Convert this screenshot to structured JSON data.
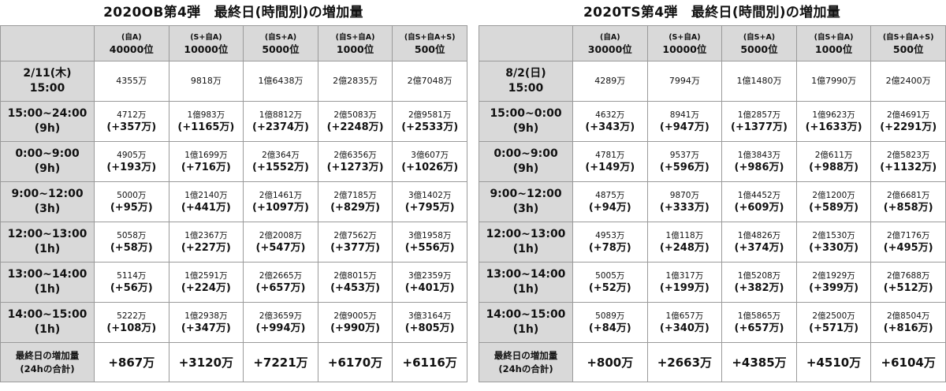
{
  "left": {
    "title": "2020OB第4弾　最終日(時間別)の増加量",
    "headers": [
      {
        "sub": "(自A)",
        "main": "40000位"
      },
      {
        "sub": "(S+自A)",
        "main": "10000位"
      },
      {
        "sub": "(自S+A)",
        "main": "5000位"
      },
      {
        "sub": "(自S+自A)",
        "main": "1000位"
      },
      {
        "sub": "(自S+自A+S)",
        "main": "500位"
      }
    ],
    "rows": [
      {
        "l1": "2/11(木)",
        "l2": "15:00",
        "cells": [
          {
            "base": "4355万",
            "inc": ""
          },
          {
            "base": "9818万",
            "inc": ""
          },
          {
            "base": "1億6438万",
            "inc": ""
          },
          {
            "base": "2億2835万",
            "inc": ""
          },
          {
            "base": "2億7048万",
            "inc": ""
          }
        ]
      },
      {
        "l1": "15:00~24:00",
        "l2": "(9h)",
        "cells": [
          {
            "base": "4712万",
            "inc": "(+357万)"
          },
          {
            "base": "1億983万",
            "inc": "(+1165万)"
          },
          {
            "base": "1億8812万",
            "inc": "(+2374万)"
          },
          {
            "base": "2億5083万",
            "inc": "(+2248万)"
          },
          {
            "base": "2億9581万",
            "inc": "(+2533万)"
          }
        ]
      },
      {
        "l1": "0:00~9:00",
        "l2": "(9h)",
        "cells": [
          {
            "base": "4905万",
            "inc": "(+193万)"
          },
          {
            "base": "1億1699万",
            "inc": "(+716万)"
          },
          {
            "base": "2億364万",
            "inc": "(+1552万)"
          },
          {
            "base": "2億6356万",
            "inc": "(+1273万)"
          },
          {
            "base": "3億607万",
            "inc": "(+1026万)"
          }
        ]
      },
      {
        "l1": "9:00~12:00",
        "l2": "(3h)",
        "cells": [
          {
            "base": "5000万",
            "inc": "(+95万)"
          },
          {
            "base": "1億2140万",
            "inc": "(+441万)"
          },
          {
            "base": "2億1461万",
            "inc": "(+1097万)"
          },
          {
            "base": "2億7185万",
            "inc": "(+829万)"
          },
          {
            "base": "3億1402万",
            "inc": "(+795万)"
          }
        ]
      },
      {
        "l1": "12:00~13:00",
        "l2": "(1h)",
        "cells": [
          {
            "base": "5058万",
            "inc": "(+58万)"
          },
          {
            "base": "1億2367万",
            "inc": "(+227万)"
          },
          {
            "base": "2億2008万",
            "inc": "(+547万)"
          },
          {
            "base": "2億7562万",
            "inc": "(+377万)"
          },
          {
            "base": "3億1958万",
            "inc": "(+556万)"
          }
        ]
      },
      {
        "l1": "13:00~14:00",
        "l2": "(1h)",
        "cells": [
          {
            "base": "5114万",
            "inc": "(+56万)"
          },
          {
            "base": "1億2591万",
            "inc": "(+224万)"
          },
          {
            "base": "2億2665万",
            "inc": "(+657万)"
          },
          {
            "base": "2億8015万",
            "inc": "(+453万)"
          },
          {
            "base": "3億2359万",
            "inc": "(+401万)"
          }
        ]
      },
      {
        "l1": "14:00~15:00",
        "l2": "(1h)",
        "cells": [
          {
            "base": "5222万",
            "inc": "(+108万)"
          },
          {
            "base": "1億2938万",
            "inc": "(+347万)"
          },
          {
            "base": "2億3659万",
            "inc": "(+994万)"
          },
          {
            "base": "2億9005万",
            "inc": "(+990万)"
          },
          {
            "base": "3億3164万",
            "inc": "(+805万)"
          }
        ]
      }
    ],
    "total": {
      "l1": "最終日の増加量",
      "l2": "(24hの合計)",
      "values": [
        "+867万",
        "+3120万",
        "+7221万",
        "+6170万",
        "+6116万"
      ]
    }
  },
  "right": {
    "title": "2020TS第4弾　最終日(時間別)の増加量",
    "headers": [
      {
        "sub": "(自A)",
        "main": "30000位"
      },
      {
        "sub": "(S+自A)",
        "main": "10000位"
      },
      {
        "sub": "(自S+A)",
        "main": "5000位"
      },
      {
        "sub": "(自S+自A)",
        "main": "1000位"
      },
      {
        "sub": "(自S+自A+S)",
        "main": "500位"
      }
    ],
    "rows": [
      {
        "l1": "8/2(日)",
        "l2": "15:00",
        "cells": [
          {
            "base": "4289万",
            "inc": ""
          },
          {
            "base": "7994万",
            "inc": ""
          },
          {
            "base": "1億1480万",
            "inc": ""
          },
          {
            "base": "1億7990万",
            "inc": ""
          },
          {
            "base": "2億2400万",
            "inc": ""
          }
        ]
      },
      {
        "l1": "15:00~0:00",
        "l2": "(9h)",
        "cells": [
          {
            "base": "4632万",
            "inc": "(+343万)"
          },
          {
            "base": "8941万",
            "inc": "(+947万)"
          },
          {
            "base": "1億2857万",
            "inc": "(+1377万)"
          },
          {
            "base": "1億9623万",
            "inc": "(+1633万)"
          },
          {
            "base": "2億4691万",
            "inc": "(+2291万)"
          }
        ]
      },
      {
        "l1": "0:00~9:00",
        "l2": "(9h)",
        "cells": [
          {
            "base": "4781万",
            "inc": "(+149万)"
          },
          {
            "base": "9537万",
            "inc": "(+596万)"
          },
          {
            "base": "1億3843万",
            "inc": "(+986万)"
          },
          {
            "base": "2億611万",
            "inc": "(+988万)"
          },
          {
            "base": "2億5823万",
            "inc": "(+1132万)"
          }
        ]
      },
      {
        "l1": "9:00~12:00",
        "l2": "(3h)",
        "cells": [
          {
            "base": "4875万",
            "inc": "(+94万)"
          },
          {
            "base": "9870万",
            "inc": "(+333万)"
          },
          {
            "base": "1億4452万",
            "inc": "(+609万)"
          },
          {
            "base": "2億1200万",
            "inc": "(+589万)"
          },
          {
            "base": "2億6681万",
            "inc": "(+858万)"
          }
        ]
      },
      {
        "l1": "12:00~13:00",
        "l2": "(1h)",
        "cells": [
          {
            "base": "4953万",
            "inc": "(+78万)"
          },
          {
            "base": "1億118万",
            "inc": "(+248万)"
          },
          {
            "base": "1億4826万",
            "inc": "(+374万)"
          },
          {
            "base": "2億1530万",
            "inc": "(+330万)"
          },
          {
            "base": "2億7176万",
            "inc": "(+495万)"
          }
        ]
      },
      {
        "l1": "13:00~14:00",
        "l2": "(1h)",
        "cells": [
          {
            "base": "5005万",
            "inc": "(+52万)"
          },
          {
            "base": "1億317万",
            "inc": "(+199万)"
          },
          {
            "base": "1億5208万",
            "inc": "(+382万)"
          },
          {
            "base": "2億1929万",
            "inc": "(+399万)"
          },
          {
            "base": "2億7688万",
            "inc": "(+512万)"
          }
        ]
      },
      {
        "l1": "14:00~15:00",
        "l2": "(1h)",
        "cells": [
          {
            "base": "5089万",
            "inc": "(+84万)"
          },
          {
            "base": "1億657万",
            "inc": "(+340万)"
          },
          {
            "base": "1億5865万",
            "inc": "(+657万)"
          },
          {
            "base": "2億2500万",
            "inc": "(+571万)"
          },
          {
            "base": "2億8504万",
            "inc": "(+816万)"
          }
        ]
      }
    ],
    "total": {
      "l1": "最終日の増加量",
      "l2": "(24hの合計)",
      "values": [
        "+800万",
        "+2663万",
        "+4385万",
        "+4510万",
        "+6104万"
      ]
    }
  }
}
